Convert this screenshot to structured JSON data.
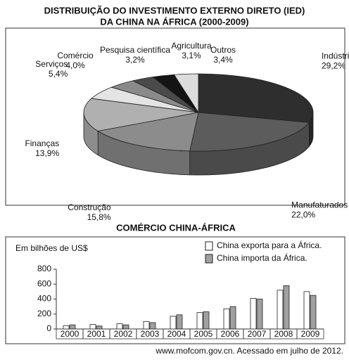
{
  "chart_data": [
    {
      "type": "pie3d",
      "title": [
        "DISTRIBUIÇÃO DO INVESTIMENTO EXTERNO DIRETO (IED)",
        "DA CHINA NA ÁFRICA (2000-2009)"
      ],
      "categories": [
        "Indústria mineradora",
        "Manufaturados",
        "Construção",
        "Finanças",
        "Serviços",
        "Comércio",
        "Pesquisa científica",
        "Agricultura",
        "Outros"
      ],
      "values": [
        29.2,
        22.0,
        15.8,
        13.9,
        5.4,
        4.0,
        3.2,
        3.1,
        3.4
      ],
      "value_labels": [
        "29,2%",
        "22,0%",
        "15,8%",
        "13,9%",
        "5,4%",
        "4,0%",
        "3,2%",
        "3,1%",
        "3,4%"
      ],
      "colors": [
        "#2e2e2e",
        "#5c5c5c",
        "#8c8c8c",
        "#b0b0b0",
        "#e4e4e4",
        "#8a8a8a",
        "#4a4a4a",
        "#141414",
        "#dcdcdc"
      ]
    },
    {
      "type": "bar",
      "title": "COMÉRCIO CHINA-ÁFRICA",
      "y_label": "Em bilhões de US$",
      "categories": [
        "2000",
        "2001",
        "2002",
        "2003",
        "2004",
        "2005",
        "2006",
        "2007",
        "2008",
        "2009"
      ],
      "series": [
        {
          "name": "China exporta para a África.",
          "color": "#ffffff",
          "values": [
            45,
            60,
            70,
            100,
            170,
            220,
            270,
            410,
            520,
            500
          ]
        },
        {
          "name": "China importa da África.",
          "color": "#a0a0a0",
          "values": [
            55,
            40,
            55,
            85,
            190,
            230,
            300,
            400,
            580,
            450
          ]
        }
      ],
      "ylim": [
        0,
        800
      ],
      "yticks": [
        0,
        200,
        400,
        600,
        800
      ]
    }
  ],
  "source": "www.mofcom.gov.cn. Acessado em julho de 2012."
}
